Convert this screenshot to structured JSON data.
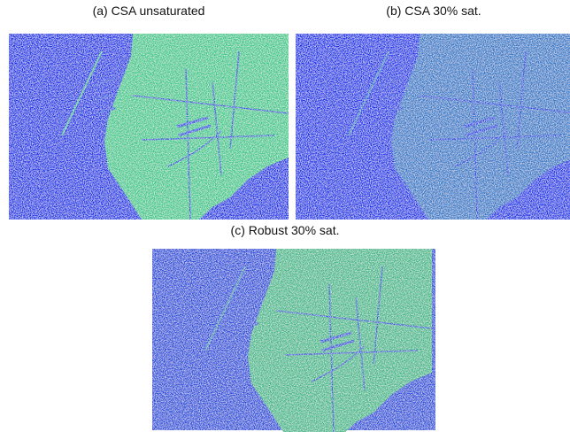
{
  "panels": [
    {
      "caption": "(a) CSA unsaturated"
    },
    {
      "caption": "(b) CSA 30% sat."
    },
    {
      "caption": "(c) Robust 30% sat."
    }
  ]
}
